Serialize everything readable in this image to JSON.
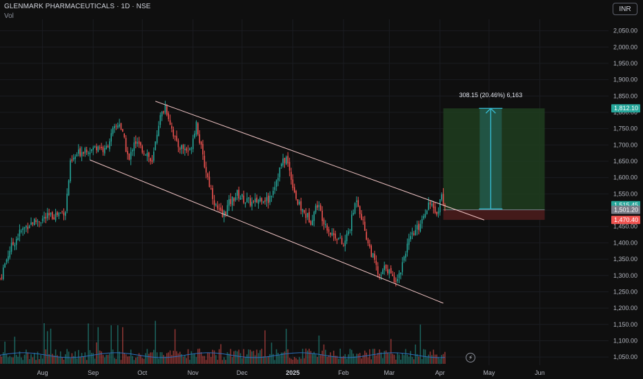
{
  "header": {
    "title": "GLENMARK PHARMACEUTICALS · 1D · NSE",
    "subtitle": "Vol",
    "currency": "INR"
  },
  "colors": {
    "background": "#0f0f0f",
    "up": "#26a69a",
    "down": "#ef5350",
    "channel": "#f2c6c6",
    "target_zone": "#1f3d1f",
    "stop_zone": "#4a1c1c",
    "measure": "#38c0d8",
    "volume_ma": "#2a6ebd"
  },
  "chart_data": {
    "type": "candlestick",
    "title": "GLENMARK PHARMACEUTICALS · 1D · NSE",
    "ylim": [
      1025,
      2085
    ],
    "y_ticks": [
      1050,
      1100,
      1150,
      1200,
      1250,
      1300,
      1350,
      1400,
      1450,
      1500,
      1550,
      1600,
      1650,
      1700,
      1750,
      1800,
      1850,
      1900,
      1950,
      2000,
      2050
    ],
    "y_tick_labels": [
      "1,050.00",
      "1,100.00",
      "1,150.00",
      "1,200.00",
      "1,250.00",
      "1,300.00",
      "1,350.00",
      "1,400.00",
      "1,450.00",
      "1,500.00",
      "1,550.00",
      "1,600.00",
      "1,650.00",
      "1,700.00",
      "1,750.00",
      "1,800.00",
      "1,850.00",
      "1,900.00",
      "1,950.00",
      "2,000.00",
      "2,050.00"
    ],
    "x_labels": [
      {
        "label": "Aug",
        "day": 26
      },
      {
        "label": "Sep",
        "day": 57
      },
      {
        "label": "Oct",
        "day": 87
      },
      {
        "label": "Nov",
        "day": 118
      },
      {
        "label": "Dec",
        "day": 148
      },
      {
        "label": "2025",
        "day": 179
      },
      {
        "label": "Feb",
        "day": 210
      },
      {
        "label": "Mar",
        "day": 238
      },
      {
        "label": "Apr",
        "day": 269
      },
      {
        "label": "May",
        "day": 299
      },
      {
        "label": "Jun",
        "day": 330
      }
    ],
    "x_range_days": [
      0,
      372
    ],
    "path_points": [
      [
        0,
        1290
      ],
      [
        6,
        1380
      ],
      [
        12,
        1430
      ],
      [
        18,
        1460
      ],
      [
        24,
        1470
      ],
      [
        30,
        1480
      ],
      [
        36,
        1490
      ],
      [
        40,
        1500
      ],
      [
        43,
        1640
      ],
      [
        47,
        1670
      ],
      [
        52,
        1690
      ],
      [
        56,
        1685
      ],
      [
        60,
        1700
      ],
      [
        64,
        1680
      ],
      [
        69,
        1740
      ],
      [
        73,
        1770
      ],
      [
        76,
        1710
      ],
      [
        79,
        1650
      ],
      [
        82,
        1715
      ],
      [
        86,
        1690
      ],
      [
        90,
        1675
      ],
      [
        93,
        1640
      ],
      [
        97,
        1770
      ],
      [
        101,
        1820
      ],
      [
        104,
        1770
      ],
      [
        108,
        1700
      ],
      [
        112,
        1690
      ],
      [
        116,
        1680
      ],
      [
        120,
        1770
      ],
      [
        124,
        1660
      ],
      [
        128,
        1580
      ],
      [
        132,
        1510
      ],
      [
        136,
        1480
      ],
      [
        140,
        1520
      ],
      [
        145,
        1550
      ],
      [
        150,
        1530
      ],
      [
        155,
        1520
      ],
      [
        160,
        1540
      ],
      [
        164,
        1530
      ],
      [
        168,
        1580
      ],
      [
        172,
        1640
      ],
      [
        175,
        1660
      ],
      [
        178,
        1600
      ],
      [
        182,
        1520
      ],
      [
        186,
        1490
      ],
      [
        190,
        1470
      ],
      [
        194,
        1520
      ],
      [
        197,
        1480
      ],
      [
        202,
        1430
      ],
      [
        206,
        1420
      ],
      [
        210,
        1390
      ],
      [
        214,
        1450
      ],
      [
        218,
        1540
      ],
      [
        221,
        1480
      ],
      [
        225,
        1400
      ],
      [
        229,
        1340
      ],
      [
        232,
        1290
      ],
      [
        236,
        1330
      ],
      [
        240,
        1290
      ],
      [
        244,
        1300
      ],
      [
        248,
        1380
      ],
      [
        252,
        1420
      ],
      [
        256,
        1450
      ],
      [
        260,
        1500
      ],
      [
        263,
        1530
      ],
      [
        266,
        1480
      ],
      [
        268,
        1510
      ],
      [
        270,
        1545
      ],
      [
        272,
        1515
      ]
    ],
    "volume_levels": {
      "ma_baseline": 1.4,
      "max_spike": 5.6
    },
    "channel": {
      "upper": [
        [
          95,
          1834
        ],
        [
          296,
          1470
        ]
      ],
      "lower": [
        [
          55,
          1654
        ],
        [
          271,
          1215
        ]
      ]
    },
    "position": {
      "type": "long",
      "start_day": 271,
      "end_day": 333,
      "entry": 1501.2,
      "target": 1812.1,
      "stop": 1470.4,
      "measure_day": 300,
      "measure_from": 1504,
      "measure_to": 1812.1,
      "label": "308.15 (20.46%) 6,163"
    },
    "price_tags": [
      {
        "value": 1812.1,
        "label": "1,812.10",
        "color": "#26a69a"
      },
      {
        "value": 1515.45,
        "label": "1,515.45",
        "color": "#26a69a"
      },
      {
        "value": 1501.2,
        "label": "1,501.20",
        "color": "#787b86"
      },
      {
        "value": 1470.4,
        "label": "1,470.40",
        "color": "#ef5350"
      }
    ]
  }
}
